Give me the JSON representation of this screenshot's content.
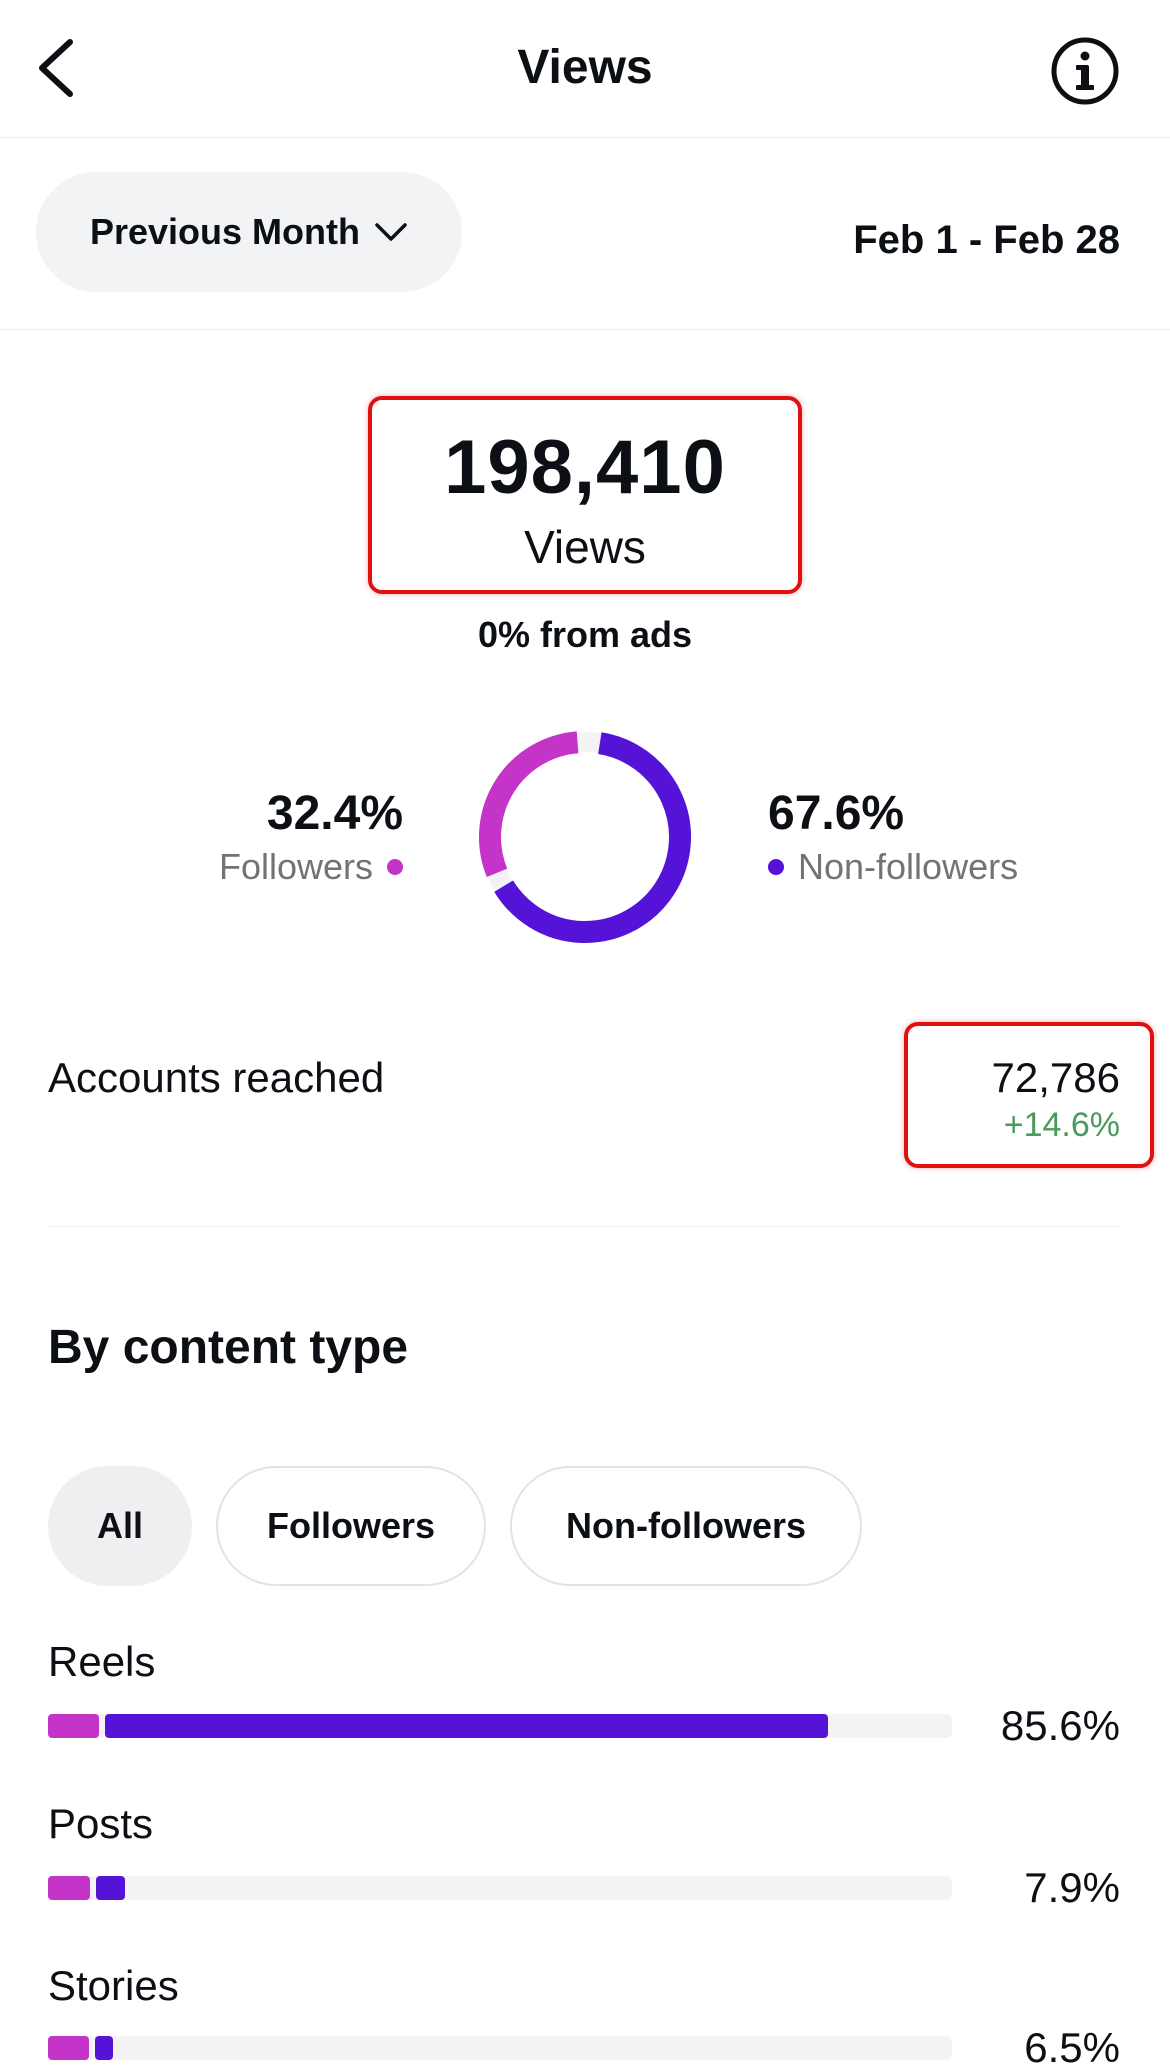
{
  "header": {
    "title": "Views"
  },
  "filter": {
    "period_label": "Previous Month",
    "date_range": "Feb 1 - Feb 28"
  },
  "metric": {
    "value": "198,410",
    "label": "Views",
    "ads_note": "0% from ads"
  },
  "audience": {
    "followers": {
      "pct": "32.4%",
      "label": "Followers",
      "fraction": 0.324,
      "color": "#c434c8"
    },
    "non_followers": {
      "pct": "67.6%",
      "label": "Non-followers",
      "fraction": 0.676,
      "color": "#5513d8"
    }
  },
  "accounts": {
    "label": "Accounts reached",
    "value": "72,786",
    "change": "+14.6%"
  },
  "content_type": {
    "title": "By content type",
    "chips": [
      {
        "label": "All",
        "selected": true
      },
      {
        "label": "Followers",
        "selected": false
      },
      {
        "label": "Non-followers",
        "selected": false
      }
    ],
    "rows": [
      {
        "label": "Reels",
        "pct": "85.6%",
        "followers_fraction": 0.056,
        "non_followers_fraction": 0.8
      },
      {
        "label": "Posts",
        "pct": "7.9%",
        "followers_fraction": 0.047,
        "non_followers_fraction": 0.032
      },
      {
        "label": "Stories",
        "pct": "6.5%",
        "followers_fraction": 0.045,
        "non_followers_fraction": 0.02
      }
    ]
  },
  "colors": {
    "followers": "#c434c8",
    "non_followers": "#5513d8",
    "positive_change": "#4a9b5b",
    "highlight_box": "#e01010"
  }
}
